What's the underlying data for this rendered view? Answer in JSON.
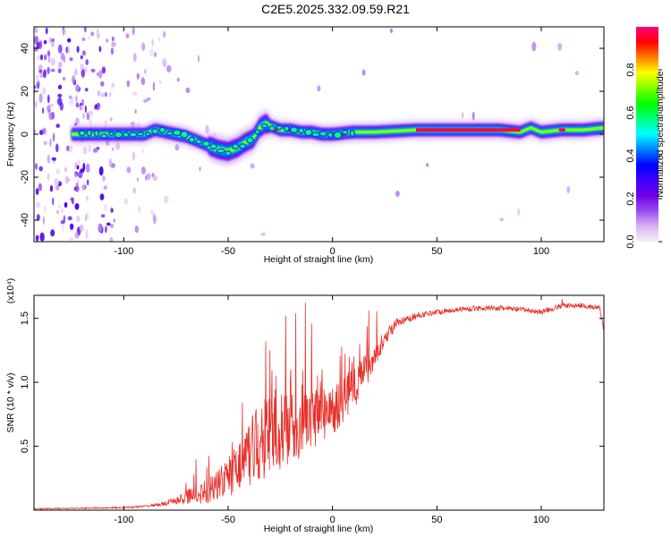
{
  "chart_data": [
    {
      "type": "heatmap",
      "title": "C2E5.2025.332.09.59.R21",
      "xlabel": "Height of straight line (km)",
      "ylabel": "Frequency (Hz)",
      "xlim": [
        -143,
        130
      ],
      "ylim": [
        -50,
        50
      ],
      "xticks": [
        -100,
        -50,
        0,
        50,
        100
      ],
      "yticks": [
        -40,
        -20,
        0,
        20,
        40
      ],
      "colorbar": {
        "label": "Normalized spectral amplitude",
        "range": [
          0,
          1
        ],
        "ticks": [
          "0.0",
          "0.2",
          "0.4",
          "0.6",
          "0.8"
        ],
        "colors": [
          "#f2f2f2",
          "#d9b3f5",
          "#9a4df0",
          "#6f00e6",
          "#3b00ff",
          "#0000ff",
          "#0080ff",
          "#00ffff",
          "#00ff80",
          "#00ff00",
          "#80ff00",
          "#ffff00",
          "#ff8000",
          "#ff0000",
          "#ff0080"
        ]
      },
      "ridge": {
        "x": [
          -125,
          -110,
          -100,
          -90,
          -85,
          -80,
          -75,
          -70,
          -65,
          -60,
          -55,
          -50,
          -45,
          -42,
          -38,
          -35,
          -32,
          -30,
          -25,
          -20,
          -15,
          -10,
          -5,
          0,
          10,
          20,
          40,
          60,
          80,
          90,
          95,
          100,
          110,
          120,
          130
        ],
        "y": [
          0,
          0,
          0,
          0,
          2,
          1,
          0,
          -1,
          -3,
          -5,
          -7,
          -8,
          -6,
          -4,
          -2,
          3,
          5,
          4,
          2,
          2,
          1,
          1,
          0,
          0,
          1,
          1,
          2,
          2,
          2,
          1,
          3,
          1,
          2,
          2,
          3
        ]
      }
    },
    {
      "type": "line",
      "xlabel": "Height of straight line (km)",
      "ylabel": "SNR (10 * v/v)",
      "scale_label": "(x10⁴)",
      "xlim": [
        -143,
        130
      ],
      "ylim": [
        0,
        1.68
      ],
      "xticks": [
        -100,
        -50,
        0,
        50,
        100
      ],
      "yticks": [
        0.5,
        1.0,
        1.5
      ],
      "ytick_labels": [
        "0.5",
        "1.0",
        "1.5"
      ],
      "line_color": "#e8302a",
      "envelope": {
        "x": [
          -143,
          -100,
          -90,
          -80,
          -70,
          -60,
          -50,
          -40,
          -30,
          -20,
          -10,
          0,
          10,
          20,
          25,
          30,
          40,
          50,
          60,
          70,
          80,
          90,
          100,
          110,
          120,
          128,
          130
        ],
        "y": [
          0.01,
          0.02,
          0.03,
          0.05,
          0.1,
          0.15,
          0.25,
          0.45,
          0.6,
          0.62,
          0.72,
          0.78,
          0.95,
          1.2,
          1.35,
          1.45,
          1.52,
          1.55,
          1.57,
          1.58,
          1.58,
          1.57,
          1.55,
          1.6,
          1.6,
          1.58,
          1.4
        ]
      },
      "noise": {
        "x": [
          -143,
          -100,
          -85,
          -75,
          -65,
          -55,
          -45,
          -35,
          -25,
          -15,
          -5,
          5,
          15,
          25,
          35,
          50,
          100,
          130
        ],
        "amp": [
          0.004,
          0.006,
          0.01,
          0.03,
          0.08,
          0.12,
          0.2,
          0.32,
          0.3,
          0.28,
          0.22,
          0.18,
          0.15,
          0.06,
          0.03,
          0.02,
          0.02,
          0.02
        ]
      },
      "spikes": [
        {
          "x": -32,
          "y": 1.32
        },
        {
          "x": -30,
          "y": 1.25
        },
        {
          "x": -27,
          "y": 1.05
        },
        {
          "x": -20,
          "y": 1.1
        },
        {
          "x": -10,
          "y": 1.46
        },
        {
          "x": -5,
          "y": 1.1
        },
        {
          "x": 8,
          "y": 1.2
        },
        {
          "x": 110,
          "y": 1.65
        }
      ]
    }
  ]
}
